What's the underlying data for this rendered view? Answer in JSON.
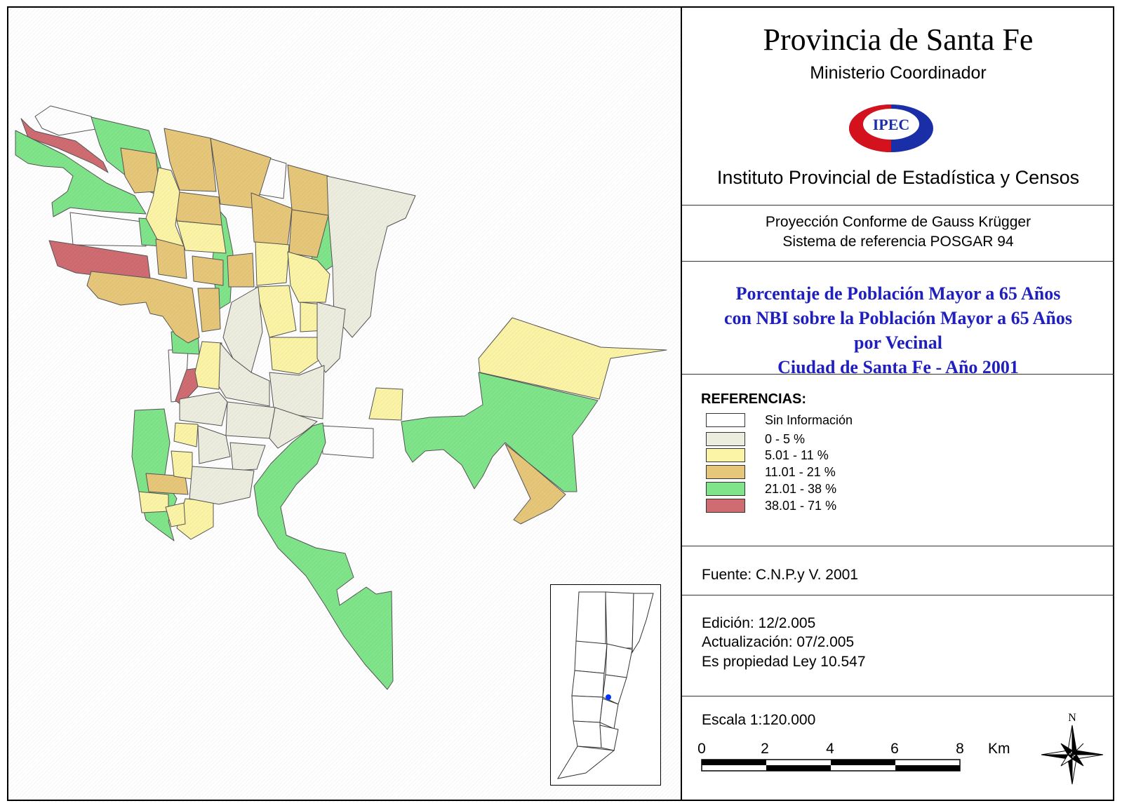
{
  "header": {
    "title": "Provincia de Santa Fe",
    "subtitle": "Ministerio Coordinador",
    "logo_text": "IPEC",
    "institute": "Instituto Provincial de Estadística y Censos"
  },
  "projection": {
    "line1": "Proyección Conforme de Gauss Krügger",
    "line2": "Sistema de referencia POSGAR 94"
  },
  "theme": {
    "line1": "Porcentaje de Población Mayor a 65 Años",
    "line2": "con NBI sobre la Población Mayor a 65 Años",
    "line3": "por Vecinal",
    "line4": "Ciudad de Santa Fe  -  Año 2001"
  },
  "legend": {
    "heading": "REFERENCIAS:",
    "items": [
      {
        "label": "Sin Información",
        "color": "#ffffff"
      },
      {
        "label": "0 - 5 %",
        "color": "#ececdf"
      },
      {
        "label": "5.01 - 11 %",
        "color": "#fbf3a5"
      },
      {
        "label": "11.01 - 21 %",
        "color": "#e6c77a"
      },
      {
        "label": "21.01 - 38 %",
        "color": "#80e48a"
      },
      {
        "label": "38.01 - 71 %",
        "color": "#cf6c72"
      }
    ]
  },
  "source": "Fuente:  C.N.P.y V. 2001",
  "edition": {
    "line1": "Edición:  12/2.005",
    "line2": "Actualización:  07/2.005",
    "line3": "Es propiedad Ley 10.547"
  },
  "scale": {
    "label": "Escala 1:120.000",
    "ticks": [
      "0",
      "2",
      "4",
      "6",
      "8"
    ],
    "unit": "Km"
  },
  "north_label": "N",
  "colors": {
    "theme_text": "#1f1fbf",
    "logo_red": "#d3121d",
    "logo_blue": "#1a2ea8",
    "inset_marker": "#0033ff"
  }
}
